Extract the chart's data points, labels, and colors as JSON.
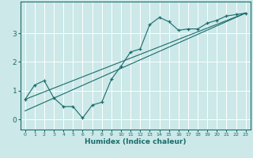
{
  "xlabel": "Humidex (Indice chaleur)",
  "ylabel": "",
  "bg_color": "#cce8e8",
  "grid_color": "#ffffff",
  "line_color": "#1a6b6b",
  "xlim": [
    -0.5,
    23.5
  ],
  "ylim": [
    -0.35,
    4.1
  ],
  "xticks": [
    0,
    1,
    2,
    3,
    4,
    5,
    6,
    7,
    8,
    9,
    10,
    11,
    12,
    13,
    14,
    15,
    16,
    17,
    18,
    19,
    20,
    21,
    22,
    23
  ],
  "yticks": [
    0,
    1,
    2,
    3
  ],
  "line1_x": [
    0,
    1,
    2,
    3,
    4,
    5,
    6,
    7,
    8,
    9,
    10,
    11,
    12,
    13,
    14,
    15,
    16,
    17,
    18,
    19,
    20,
    21,
    22,
    23
  ],
  "line1_y": [
    0.7,
    1.2,
    1.35,
    0.75,
    0.45,
    0.45,
    0.05,
    0.5,
    0.6,
    1.4,
    1.85,
    2.35,
    2.45,
    3.3,
    3.55,
    3.4,
    3.1,
    3.15,
    3.15,
    3.35,
    3.45,
    3.6,
    3.65,
    3.7
  ],
  "line2_x": [
    0,
    23
  ],
  "line2_y": [
    0.7,
    3.7
  ],
  "line3_x": [
    0,
    23
  ],
  "line3_y": [
    0.3,
    3.7
  ]
}
